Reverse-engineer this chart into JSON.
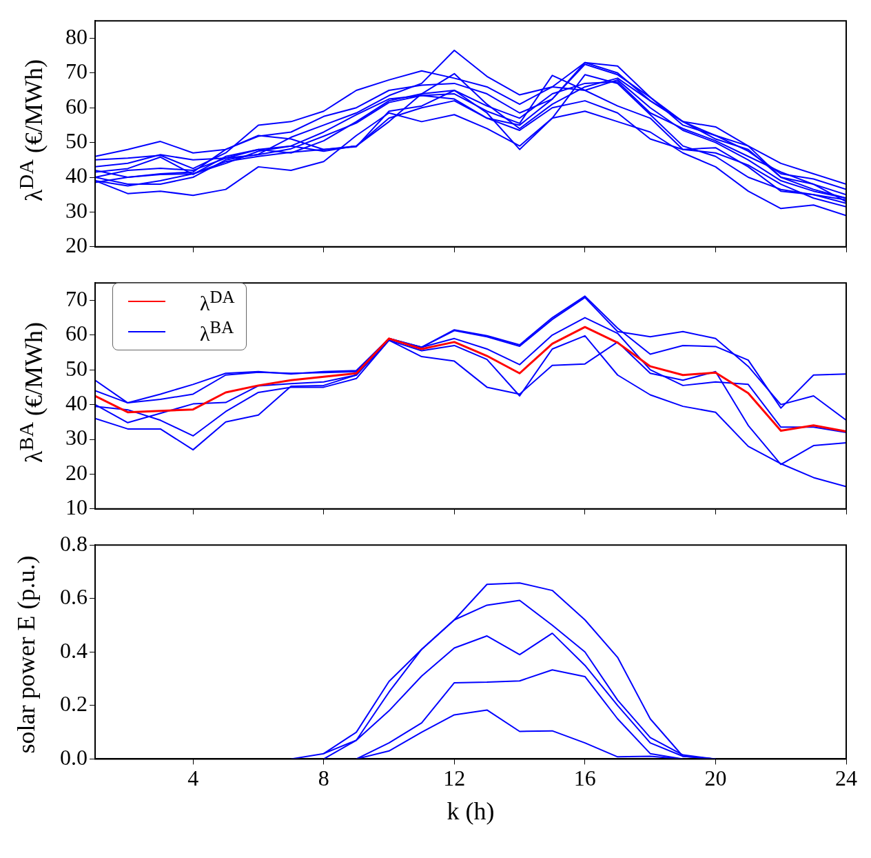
{
  "chart_data": [
    {
      "type": "line",
      "ylabel": "λ$^{DA}$ (€/MWh)",
      "x": [
        1,
        2,
        3,
        4,
        5,
        6,
        7,
        8,
        9,
        10,
        11,
        12,
        13,
        14,
        15,
        16,
        17,
        18,
        19,
        20,
        21,
        22,
        23,
        24
      ],
      "xlim": [
        1,
        24
      ],
      "xticks": [
        4,
        8,
        12,
        16,
        20,
        24
      ],
      "ylim": [
        20,
        85
      ],
      "yticks": [
        20,
        30,
        40,
        50,
        60,
        70,
        80
      ],
      "tick_labels": "y",
      "series": [
        {
          "color": "#0000ff",
          "values": [
            46,
            48,
            50.3,
            47,
            48,
            52,
            51,
            48,
            49,
            56,
            64,
            69.8,
            61,
            54,
            61,
            66,
            68.5,
            62,
            56,
            54.5,
            49,
            44,
            41,
            38
          ]
        },
        {
          "color": "#0000ff",
          "values": [
            45,
            45.5,
            46.3,
            42.5,
            47,
            55,
            56,
            59,
            65,
            68,
            70.6,
            68.5,
            66,
            61,
            66,
            73,
            72,
            63,
            55,
            52,
            49,
            40,
            38,
            35
          ]
        },
        {
          "color": "#0000ff",
          "values": [
            42,
            40,
            41,
            41.5,
            48,
            51.8,
            53,
            57.5,
            60,
            65,
            66.5,
            67,
            64,
            58.5,
            62.5,
            73,
            70,
            62,
            56,
            51,
            48,
            40,
            36.5,
            34
          ]
        },
        {
          "color": "#0000ff",
          "values": [
            40,
            38,
            38,
            40,
            45,
            46.6,
            51.5,
            55,
            58.5,
            63.5,
            67,
            76.5,
            69,
            63.7,
            66,
            65,
            68,
            60,
            53.5,
            50,
            45,
            39,
            36,
            34
          ]
        },
        {
          "color": "#0000ff",
          "values": [
            43,
            44,
            46.5,
            45,
            45.5,
            48,
            47,
            50.5,
            56,
            62,
            64,
            65,
            60.5,
            57,
            64,
            67,
            67.5,
            58.5,
            54,
            50.5,
            46,
            41.5,
            38,
            33
          ]
        },
        {
          "color": "#0000ff",
          "values": [
            39,
            37.5,
            39,
            41,
            44,
            47.5,
            49,
            53,
            58,
            62.5,
            63.5,
            64,
            59,
            55.5,
            69.3,
            65,
            60.5,
            57,
            48,
            48.5,
            43,
            36,
            35,
            32.5
          ]
        },
        {
          "color": "#0000ff",
          "values": [
            40,
            42,
            42.6,
            42,
            45.5,
            46.5,
            48.2,
            51.8,
            55.6,
            61.5,
            63.5,
            62.5,
            57,
            53.5,
            60,
            62,
            58.5,
            51,
            48,
            47,
            43.5,
            38,
            34,
            31.5
          ]
        },
        {
          "color": "#0000ff",
          "values": [
            38.5,
            40,
            40.8,
            41,
            44.5,
            46,
            47.2,
            48,
            48.8,
            59,
            60.5,
            65,
            58.5,
            48,
            57,
            69.5,
            67,
            58,
            49,
            46,
            40,
            36.5,
            35,
            33.5
          ]
        },
        {
          "color": "#0000ff",
          "values": [
            39,
            35.3,
            36,
            34.8,
            36.5,
            43,
            42,
            44.5,
            52,
            58.5,
            56,
            58,
            54,
            49,
            57,
            59,
            56,
            53,
            47,
            43,
            36,
            31,
            32,
            29
          ]
        },
        {
          "color": "#0000ff",
          "values": [
            41.5,
            42.5,
            45.8,
            40.8,
            46,
            48,
            49,
            47.5,
            49,
            57,
            60,
            62,
            57,
            55,
            62.5,
            72.5,
            69.5,
            63,
            56,
            52,
            47.5,
            41,
            39.5,
            36.5
          ]
        }
      ]
    },
    {
      "type": "line",
      "ylabel": "λ$^{BA}$ (€/MWh)",
      "x": [
        1,
        2,
        3,
        4,
        5,
        6,
        7,
        8,
        9,
        10,
        11,
        12,
        13,
        14,
        15,
        16,
        17,
        18,
        19,
        20,
        21,
        22,
        23,
        24
      ],
      "xlim": [
        1,
        24
      ],
      "xticks": [
        4,
        8,
        12,
        16,
        20,
        24
      ],
      "ylim": [
        10,
        75
      ],
      "yticks": [
        10,
        20,
        30,
        40,
        50,
        60,
        70
      ],
      "tick_labels": "y",
      "legend": "top left",
      "series": [
        {
          "name": "λ$^{DA}$",
          "color": "#ff0000",
          "values": [
            42.5,
            37.8,
            38.2,
            38.6,
            43.5,
            45.5,
            47,
            48,
            49,
            59,
            56,
            58,
            54,
            49,
            57.5,
            62.3,
            57.8,
            51,
            48.5,
            49.2,
            43.3,
            32.5,
            34,
            32.3
          ]
        },
        {
          "name": "λ$^{BA}$",
          "color": "#0000ff",
          "values": [
            47,
            40.5,
            43,
            45.8,
            49,
            49.5,
            48.8,
            49.5,
            49.8,
            59,
            56.5,
            61.5,
            59.8,
            57.2,
            65,
            71.2,
            62,
            54.5,
            57,
            56.7,
            52.8,
            39,
            48.5,
            48.8
          ]
        },
        {
          "color": "#0000ff",
          "values": [
            44,
            40.5,
            41.5,
            43,
            48.5,
            49.3,
            49,
            49.2,
            49.5,
            59,
            56.5,
            61.3,
            59.5,
            56.8,
            64.5,
            70.8,
            61,
            59.5,
            61,
            59,
            51,
            40,
            42.5,
            35.5
          ]
        },
        {
          "color": "#0000ff",
          "values": [
            40,
            34.8,
            37.5,
            40.2,
            40.6,
            45.4,
            46,
            46.5,
            48.5,
            58.8,
            56.5,
            59,
            56,
            51.5,
            60,
            65,
            60.5,
            50,
            45.5,
            46.5,
            45.8,
            33.5,
            33.5,
            32
          ]
        },
        {
          "color": "#0000ff",
          "values": [
            39.5,
            38.5,
            35.5,
            31,
            38,
            43.5,
            45,
            45,
            47.5,
            58.5,
            53.8,
            52.5,
            45,
            43,
            51.3,
            51.7,
            58,
            49,
            47,
            49.5,
            34,
            22.8,
            28.2,
            29
          ]
        },
        {
          "color": "#0000ff",
          "values": [
            36,
            33,
            33,
            27,
            35,
            37,
            45.3,
            45.5,
            48.5,
            58.5,
            55.5,
            57,
            53,
            42.5,
            56,
            59.8,
            48.5,
            42.8,
            39.5,
            37.8,
            28,
            23,
            19,
            16.4
          ]
        }
      ]
    },
    {
      "type": "line",
      "xlabel": "k (h)",
      "ylabel": "solar power E (p.u.)",
      "xlim": [
        1,
        24
      ],
      "xticks": [
        4,
        8,
        12,
        16,
        20,
        24
      ],
      "ylim": [
        0,
        0.8
      ],
      "yticks": [
        {
          "value": 0,
          "label": "0.0"
        },
        {
          "value": 0.2,
          "label": "0.2"
        },
        {
          "value": 0.4,
          "label": "0.4"
        },
        {
          "value": 0.6,
          "label": "0.6"
        },
        {
          "value": 0.8,
          "label": "0.8"
        }
      ],
      "series": [
        {
          "color": "#0000ff",
          "x": [
            7,
            8,
            9,
            10,
            11,
            12,
            13,
            14,
            15,
            16,
            17,
            18,
            19,
            20
          ],
          "values": [
            0,
            0.02,
            0.1,
            0.29,
            0.41,
            0.52,
            0.653,
            0.658,
            0.63,
            0.52,
            0.38,
            0.15,
            0.01,
            0
          ]
        },
        {
          "color": "#0000ff",
          "x": [
            8,
            9,
            10,
            11,
            12,
            13,
            14,
            15,
            16,
            17,
            18,
            19,
            20
          ],
          "values": [
            0.02,
            0.07,
            0.25,
            0.41,
            0.52,
            0.575,
            0.593,
            0.5,
            0.4,
            0.22,
            0.08,
            0.015,
            0
          ]
        },
        {
          "color": "#0000ff",
          "x": [
            8,
            9,
            10,
            11,
            12,
            13,
            14,
            15,
            16,
            17,
            18,
            19,
            20
          ],
          "values": [
            0,
            0.07,
            0.18,
            0.31,
            0.415,
            0.46,
            0.39,
            0.47,
            0.35,
            0.2,
            0.06,
            0.01,
            0
          ]
        },
        {
          "color": "#0000ff",
          "x": [
            9,
            10,
            11,
            12,
            13,
            14,
            15,
            16,
            17,
            18,
            19
          ],
          "values": [
            0,
            0.06,
            0.135,
            0.285,
            0.287,
            0.292,
            0.333,
            0.308,
            0.15,
            0.02,
            0
          ]
        },
        {
          "color": "#0000ff",
          "x": [
            9,
            10,
            11,
            12,
            13,
            14,
            15,
            16,
            17,
            18,
            19
          ],
          "values": [
            0,
            0.03,
            0.1,
            0.165,
            0.183,
            0.103,
            0.105,
            0.06,
            0.008,
            0.01,
            0
          ]
        }
      ]
    }
  ]
}
